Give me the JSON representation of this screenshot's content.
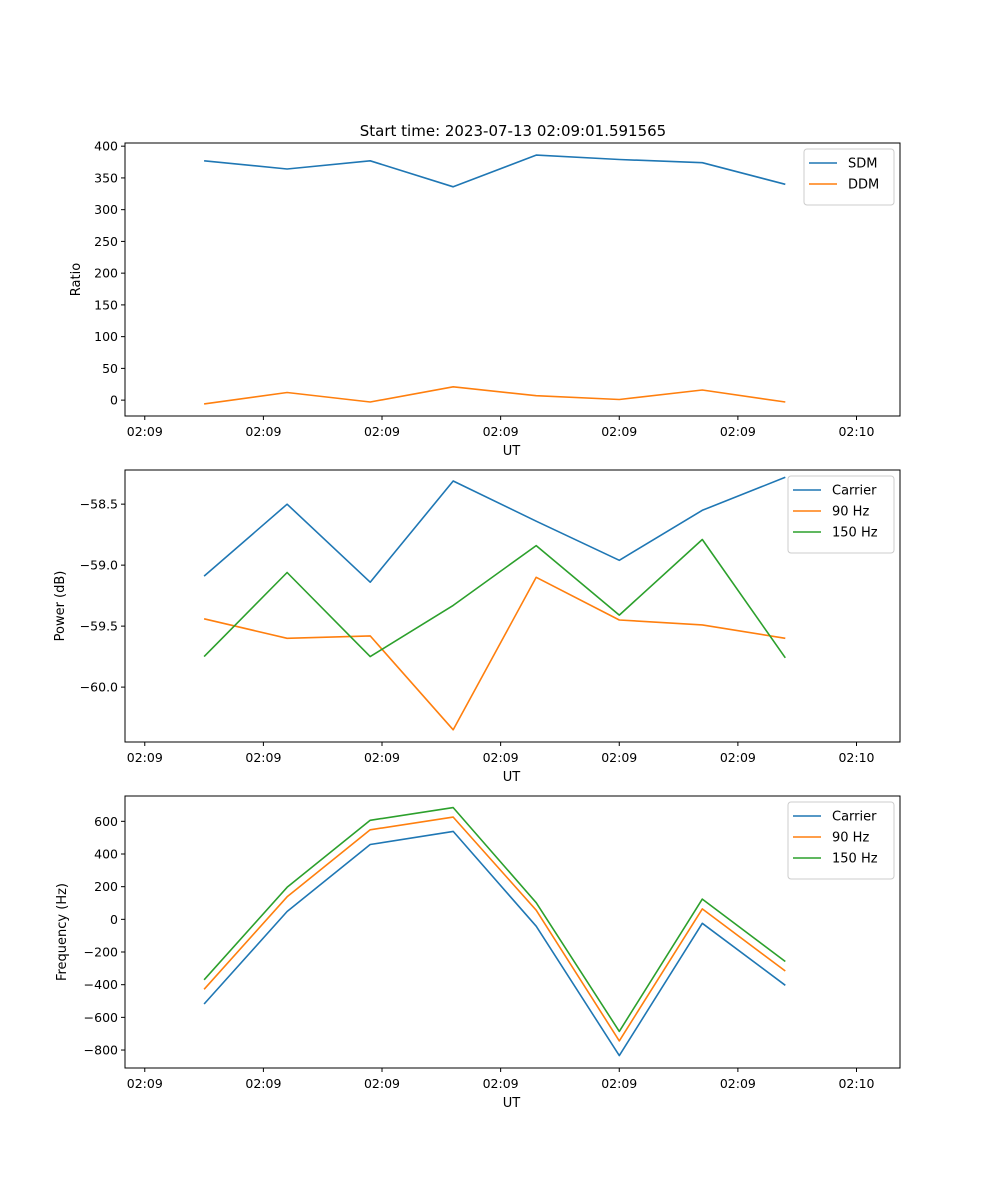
{
  "figure": {
    "title": "Start time: 2023-07-13 02:09:01.591565"
  },
  "colors": {
    "blue": "#1f77b4",
    "orange": "#ff7f0e",
    "green": "#2ca02c"
  },
  "chart_data": [
    {
      "type": "line",
      "title": "Start time: 2023-07-13 02:09:01.591565",
      "xlabel": "UT",
      "ylabel": "Ratio",
      "x_tick_labels": [
        "02:09",
        "02:09",
        "02:09",
        "02:09",
        "02:09",
        "02:09",
        "02:10"
      ],
      "xlim": [
        -0.25,
        9.55
      ],
      "ylim": [
        -25,
        405
      ],
      "y_ticks": [
        0,
        50,
        100,
        150,
        200,
        250,
        300,
        350,
        400
      ],
      "y_tick_labels": [
        "0",
        "50",
        "100",
        "150",
        "200",
        "250",
        "300",
        "350",
        "400"
      ],
      "x": [
        0.75,
        1.8,
        2.85,
        3.9,
        4.95,
        6.0,
        7.05,
        8.1
      ],
      "legend_position": "top-right",
      "series": [
        {
          "name": "SDM",
          "color": "blue",
          "values": [
            377,
            364,
            377,
            336,
            386,
            379,
            374,
            340
          ]
        },
        {
          "name": "DDM",
          "color": "orange",
          "values": [
            -6,
            12,
            -3,
            21,
            7,
            1,
            16,
            -3
          ]
        }
      ]
    },
    {
      "type": "line",
      "xlabel": "UT",
      "ylabel": "Power (dB)",
      "x_tick_labels": [
        "02:09",
        "02:09",
        "02:09",
        "02:09",
        "02:09",
        "02:09",
        "02:10"
      ],
      "xlim": [
        -0.25,
        9.55
      ],
      "ylim": [
        -60.45,
        -58.22
      ],
      "y_ticks": [
        -60.0,
        -59.5,
        -59.0,
        -58.5
      ],
      "y_tick_labels": [
        "−60.0",
        "−59.5",
        "−59.0",
        "−58.5"
      ],
      "x": [
        0.75,
        1.8,
        2.85,
        3.9,
        4.95,
        6.0,
        7.05,
        8.1
      ],
      "legend_position": "top-right",
      "series": [
        {
          "name": "Carrier",
          "color": "blue",
          "values": [
            -59.09,
            -58.5,
            -59.14,
            -58.31,
            -58.64,
            -58.96,
            -58.55,
            -58.28
          ]
        },
        {
          "name": "90 Hz",
          "color": "orange",
          "values": [
            -59.44,
            -59.6,
            -59.58,
            -60.35,
            -59.1,
            -59.45,
            -59.49,
            -59.6
          ]
        },
        {
          "name": "150 Hz",
          "color": "green",
          "values": [
            -59.75,
            -59.06,
            -59.75,
            -59.33,
            -58.84,
            -59.41,
            -58.79,
            -59.76
          ]
        }
      ]
    },
    {
      "type": "line",
      "xlabel": "UT",
      "ylabel": "Frequency (Hz)",
      "x_tick_labels": [
        "02:09",
        "02:09",
        "02:09",
        "02:09",
        "02:09",
        "02:09",
        "02:10"
      ],
      "xlim": [
        -0.25,
        9.55
      ],
      "ylim": [
        -910,
        755
      ],
      "y_ticks": [
        -800,
        -600,
        -400,
        -200,
        0,
        200,
        400,
        600
      ],
      "y_tick_labels": [
        "−800",
        "−600",
        "−400",
        "−200",
        "0",
        "200",
        "400",
        "600"
      ],
      "x": [
        0.75,
        1.8,
        2.85,
        3.9,
        4.95,
        6.0,
        7.05,
        8.1
      ],
      "legend_position": "top-right",
      "series": [
        {
          "name": "Carrier",
          "color": "blue",
          "values": [
            -518,
            48,
            458,
            538,
            -42,
            -834,
            -24,
            -404
          ]
        },
        {
          "name": "90 Hz",
          "color": "orange",
          "values": [
            -428,
            138,
            548,
            626,
            56,
            -744,
            64,
            -316
          ]
        },
        {
          "name": "150 Hz",
          "color": "green",
          "values": [
            -370,
            196,
            606,
            684,
            102,
            -686,
            124,
            -258
          ]
        }
      ]
    }
  ]
}
